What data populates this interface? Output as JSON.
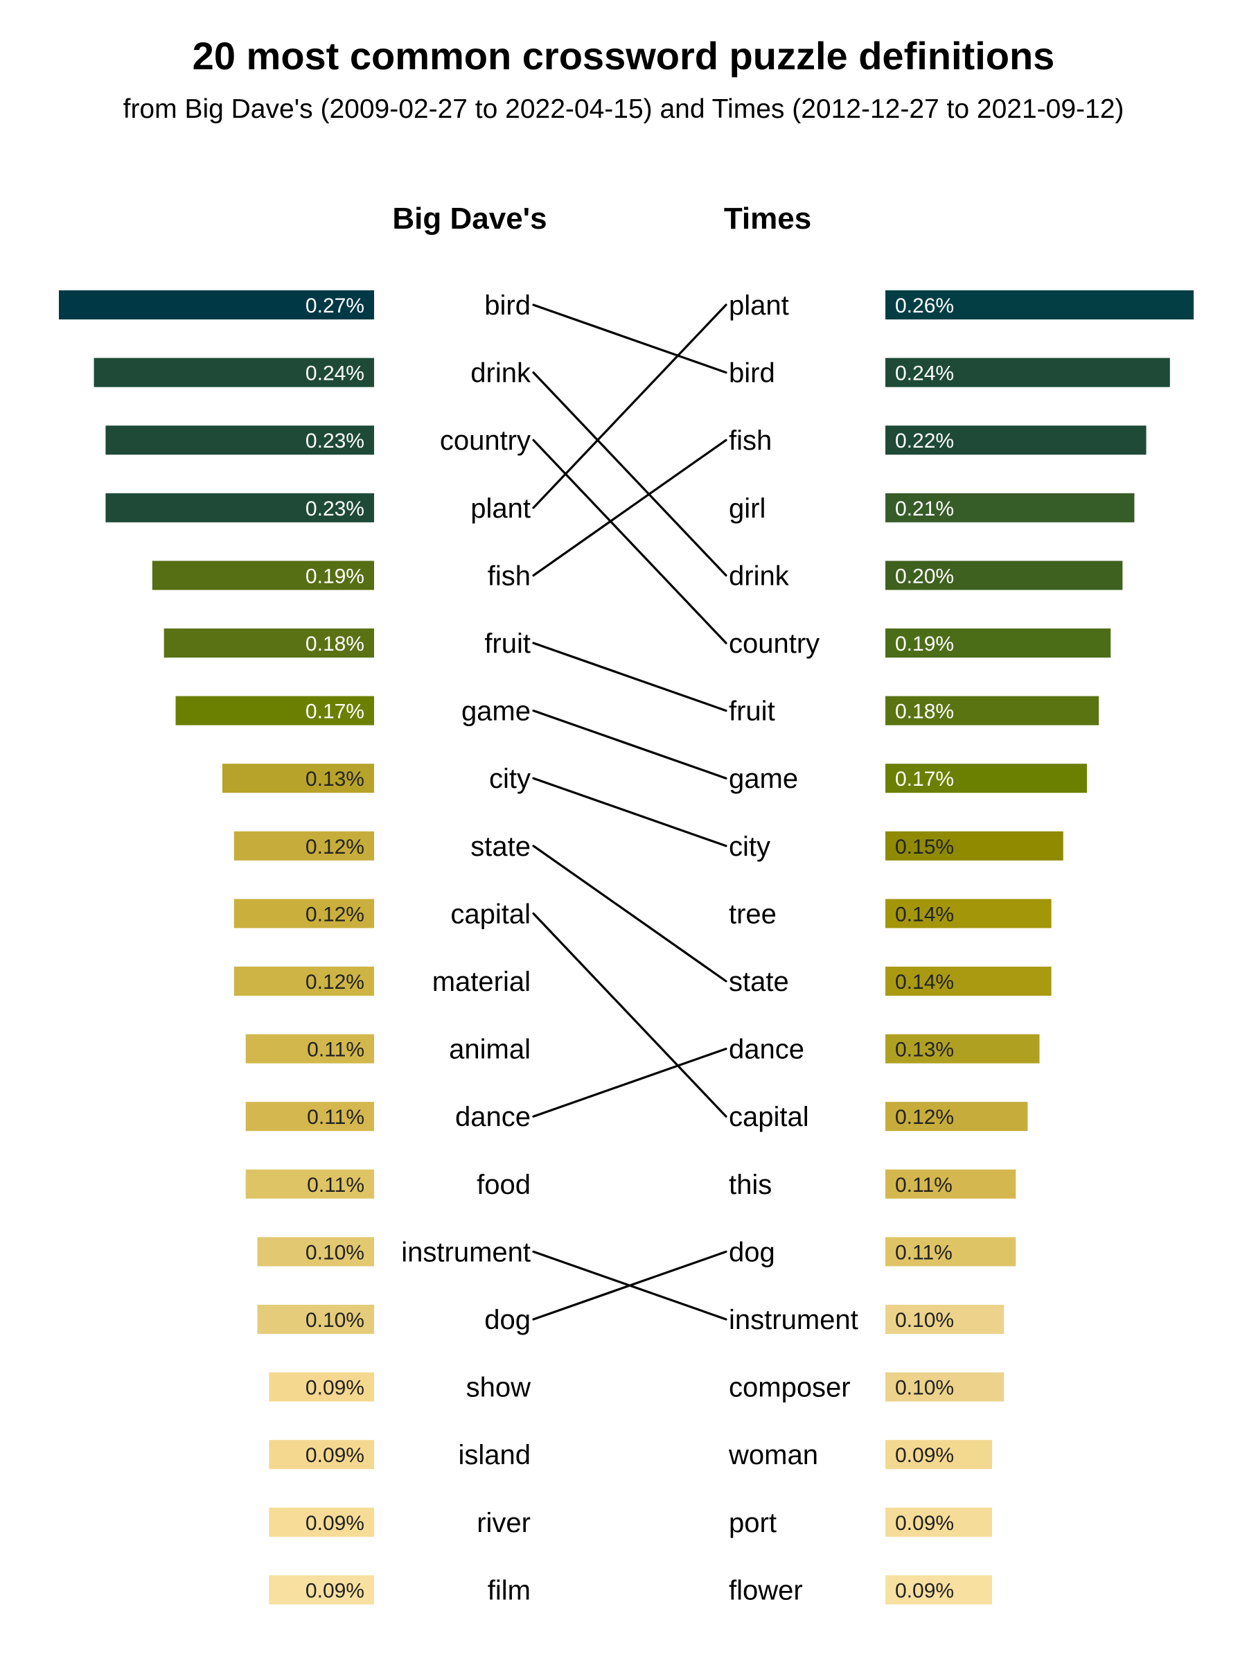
{
  "chart_data": {
    "type": "bar",
    "title": "20 most common crossword puzzle definitions",
    "subtitle": "from Big Dave's (2009-02-27 to 2022-04-15) and Times (2012-12-27 to 2021-09-12)",
    "grid": false,
    "series": [
      {
        "name": "Big Dave's",
        "categories": [
          "bird",
          "drink",
          "country",
          "plant",
          "fish",
          "fruit",
          "game",
          "city",
          "state",
          "capital",
          "material",
          "animal",
          "dance",
          "food",
          "instrument",
          "dog",
          "show",
          "island",
          "river",
          "film"
        ],
        "values": [
          0.27,
          0.24,
          0.23,
          0.23,
          0.19,
          0.18,
          0.17,
          0.13,
          0.12,
          0.12,
          0.12,
          0.11,
          0.11,
          0.11,
          0.1,
          0.1,
          0.09,
          0.09,
          0.09,
          0.09
        ],
        "value_labels": [
          "0.27%",
          "0.24%",
          "0.23%",
          "0.23%",
          "0.19%",
          "0.18%",
          "0.17%",
          "0.13%",
          "0.12%",
          "0.12%",
          "0.12%",
          "0.11%",
          "0.11%",
          "0.11%",
          "0.10%",
          "0.10%",
          "0.09%",
          "0.09%",
          "0.09%",
          "0.09%"
        ],
        "colors": [
          "#003845",
          "#1e4a37",
          "#1e4a37",
          "#1e4a37",
          "#566e14",
          "#5a7214",
          "#6b8000",
          "#b8a32a",
          "#c6ac3a",
          "#caaf3c",
          "#cdb444",
          "#d2b74c",
          "#d4b74e",
          "#dfc466",
          "#e2c871",
          "#e5cc7a",
          "#f5d890",
          "#f5d890",
          "#f6dc96",
          "#f8e0a0"
        ]
      },
      {
        "name": "Times",
        "categories": [
          "plant",
          "bird",
          "fish",
          "girl",
          "drink",
          "country",
          "fruit",
          "game",
          "city",
          "tree",
          "state",
          "dance",
          "capital",
          "this",
          "dog",
          "instrument",
          "composer",
          "woman",
          "port",
          "flower"
        ],
        "values": [
          0.26,
          0.24,
          0.22,
          0.21,
          0.2,
          0.19,
          0.18,
          0.17,
          0.15,
          0.14,
          0.14,
          0.13,
          0.12,
          0.11,
          0.11,
          0.1,
          0.1,
          0.09,
          0.09,
          0.09
        ],
        "value_labels": [
          "0.26%",
          "0.24%",
          "0.22%",
          "0.21%",
          "0.20%",
          "0.19%",
          "0.18%",
          "0.17%",
          "0.15%",
          "0.14%",
          "0.14%",
          "0.13%",
          "0.12%",
          "0.11%",
          "0.11%",
          "0.10%",
          "0.10%",
          "0.09%",
          "0.09%",
          "0.09%"
        ],
        "colors": [
          "#033e45",
          "#1e4a37",
          "#1e4a37",
          "#365c27",
          "#3f611f",
          "#4c6d17",
          "#5a7412",
          "#6b8000",
          "#8f8a00",
          "#a39609",
          "#a99a12",
          "#b0a022",
          "#c6ac3a",
          "#d4b74e",
          "#dfc466",
          "#ecd28a",
          "#ecd28a",
          "#f3d890",
          "#f5dc98",
          "#f7e0a0"
        ]
      }
    ]
  }
}
